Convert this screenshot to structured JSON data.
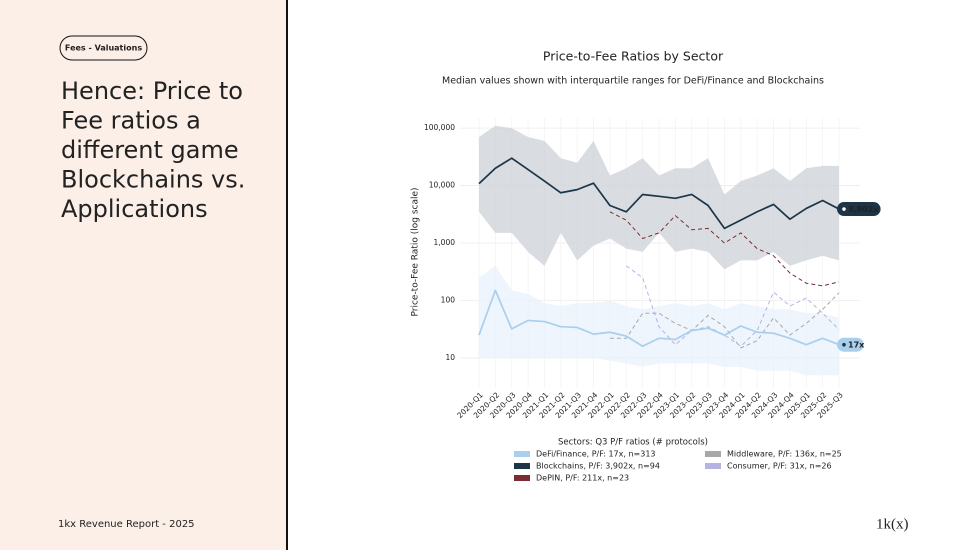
{
  "slide": {
    "tag": "Fees - Valuations",
    "heading": [
      "Hence: Price to",
      "Fee ratios a",
      "different game",
      "Blockchains vs.",
      "Applications"
    ],
    "footer": "1kx Revenue Report  - 2025",
    "logo": "1k(x)"
  },
  "chart_data": {
    "type": "line",
    "title": "Price-to-Fee Ratios by Sector",
    "subtitle": "Median values shown with interquartile ranges for DeFi/Finance and Blockchains",
    "y_label": "Price-to-Fee Ratio (log scale)",
    "yscale": "log",
    "grid": true,
    "ylim": [
      3,
      150000
    ],
    "yticks": [
      10,
      100,
      {
        "value": 1000,
        "label": "1,000"
      },
      {
        "value": 10000,
        "label": "10,000"
      },
      {
        "value": 100000,
        "label": "100,000"
      }
    ],
    "categories": [
      "2020-Q1",
      "2020-Q2",
      "2020-Q3",
      "2020-Q4",
      "2021-Q1",
      "2021-Q2",
      "2021-Q3",
      "2021-Q4",
      "2022-Q1",
      "2022-Q2",
      "2022-Q3",
      "2022-Q4",
      "2023-Q1",
      "2023-Q2",
      "2023-Q3",
      "2023-Q4",
      "2024-Q1",
      "2024-Q2",
      "2024-Q3",
      "2024-Q4",
      "2025-Q1",
      "2025-Q2",
      "2025-Q3"
    ],
    "legend_title": "Sectors: Q3 P/F ratios (# protocols)",
    "series": [
      {
        "name": "DeFi/Finance, P/F: 17x, n=313",
        "color": "#a9cfee",
        "band_color": "#e8f2fb",
        "dash": false,
        "end_label": "17x",
        "values": [
          25,
          150,
          32,
          45,
          43,
          35,
          34,
          26,
          28,
          24,
          16,
          22,
          21,
          30,
          33,
          25,
          36,
          28,
          27,
          22,
          17,
          22,
          17
        ],
        "upper": [
          250,
          400,
          150,
          130,
          90,
          80,
          90,
          90,
          100,
          80,
          70,
          80,
          90,
          80,
          90,
          70,
          90,
          80,
          70,
          70,
          60,
          60,
          50
        ],
        "lower": [
          10,
          10,
          10,
          10,
          10,
          10,
          10,
          10,
          9,
          8,
          7,
          8,
          8,
          8,
          8,
          7,
          7,
          6,
          6,
          6,
          5,
          5,
          5
        ]
      },
      {
        "name": "Blockchains, P/F: 3,902x, n=94",
        "color": "#1e3447",
        "band_color": "#ccd2d7",
        "dash": false,
        "end_label": "3,902x",
        "values": [
          10800,
          20000,
          30000,
          19000,
          12000,
          7500,
          8500,
          11000,
          4500,
          3500,
          7000,
          6500,
          6000,
          7000,
          4500,
          1800,
          2500,
          3500,
          4700,
          2600,
          4000,
          5500,
          3902
        ],
        "upper": [
          70000,
          110000,
          100000,
          70000,
          60000,
          30000,
          25000,
          60000,
          15000,
          20000,
          30000,
          15000,
          20000,
          20000,
          30000,
          7000,
          12000,
          15000,
          20000,
          12000,
          20000,
          22000,
          22000
        ],
        "lower": [
          3500,
          1500,
          1500,
          700,
          400,
          1500,
          500,
          900,
          1200,
          800,
          700,
          1500,
          700,
          800,
          700,
          350,
          500,
          500,
          700,
          400,
          500,
          600,
          500
        ]
      },
      {
        "name": "DePIN, P/F: 211x, n=23",
        "color": "#7a2e33",
        "dash": true,
        "values": [
          null,
          null,
          null,
          null,
          null,
          null,
          null,
          null,
          3500,
          2500,
          1200,
          1500,
          3000,
          1700,
          1800,
          1000,
          1500,
          800,
          600,
          300,
          200,
          180,
          211
        ]
      },
      {
        "name": "Middleware, P/F: 136x, n=25",
        "color": "#a8a8a8",
        "dash": true,
        "values": [
          null,
          null,
          null,
          null,
          null,
          null,
          null,
          null,
          22,
          22,
          60,
          60,
          40,
          30,
          55,
          35,
          15,
          20,
          50,
          25,
          40,
          70,
          136
        ]
      },
      {
        "name": "Consumer, P/F: 31x, n=26",
        "color": "#b3b3e6",
        "dash": true,
        "values": [
          null,
          null,
          null,
          null,
          null,
          null,
          null,
          null,
          null,
          400,
          250,
          35,
          17,
          30,
          35,
          25,
          16,
          30,
          140,
          80,
          110,
          60,
          31
        ]
      }
    ]
  }
}
